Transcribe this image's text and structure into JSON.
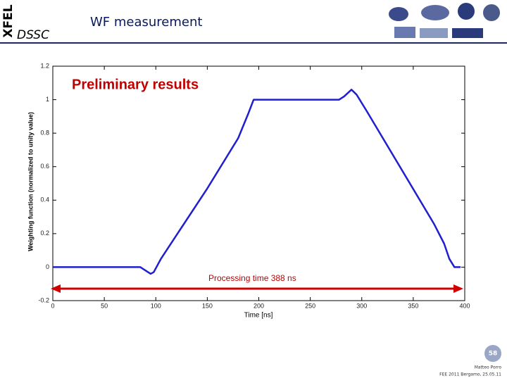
{
  "header": {
    "logo_text": "XFEL",
    "subtitle": "DSSC",
    "title": "WF measurement"
  },
  "chart_data": {
    "type": "line",
    "xlabel": "Time [ns]",
    "ylabel": "Weighting function (normalized to unity value)",
    "annotations": [
      "Preliminary results",
      "Processing time 388 ns"
    ],
    "x": [
      0,
      85,
      90,
      95,
      98,
      105,
      150,
      180,
      190,
      195,
      200,
      278,
      283,
      290,
      295,
      305,
      370,
      380,
      385,
      390,
      396
    ],
    "values": [
      0,
      0,
      -0.02,
      -0.04,
      -0.03,
      0.05,
      0.47,
      0.77,
      0.92,
      1.0,
      1.0,
      1.0,
      1.02,
      1.06,
      1.03,
      0.93,
      0.26,
      0.14,
      0.05,
      0.0,
      0.0
    ],
    "color": "#1f1fcf",
    "xlim": [
      0,
      400
    ],
    "xticks": [
      0,
      50,
      100,
      150,
      200,
      250,
      300,
      350,
      400
    ],
    "ylim": [
      -0.2,
      1.2
    ],
    "yticks": [
      -0.2,
      0,
      0.2,
      0.4,
      0.6,
      0.8,
      1,
      1.2
    ],
    "grid": false
  },
  "footer": {
    "page": "58",
    "author": "Matteo Porro",
    "event": "FEE 2011 Bergamo, 25.05.11"
  }
}
